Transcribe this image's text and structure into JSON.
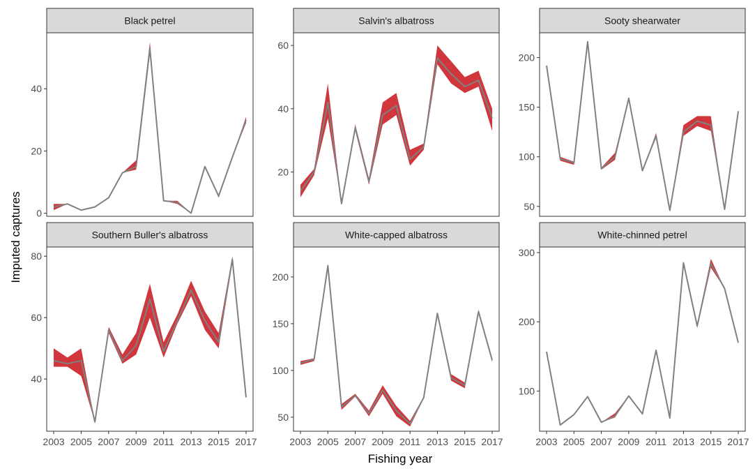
{
  "chart_data": {
    "type": "area",
    "xlabel": "Fishing year",
    "ylabel": "Imputed captures",
    "x_ticks": [
      2003,
      2005,
      2007,
      2009,
      2011,
      2013,
      2015,
      2017
    ],
    "x_tick_labels": [
      "2003",
      "2005",
      "2007",
      "2009",
      "2011",
      "2013",
      "2015",
      "2017"
    ],
    "xlim": [
      2003,
      2017
    ],
    "colors": {
      "band": "#d0363b",
      "line": "#808080",
      "strip": "#d9d9d9",
      "text": "#4d4d4d"
    },
    "panels": [
      {
        "title": "Black petrel",
        "ylim": [
          -1,
          58
        ],
        "y_ticks": [
          0,
          20,
          40
        ],
        "y_tick_labels": [
          "0",
          "20",
          "40"
        ],
        "years": [
          2003,
          2004,
          2005,
          2006,
          2007,
          2008,
          2009,
          2010,
          2011,
          2012,
          2013,
          2014,
          2015,
          2016,
          2017
        ],
        "median": [
          2,
          3,
          1,
          2,
          5,
          13,
          15,
          53,
          4,
          3.5,
          0,
          15,
          5.5,
          18,
          30
        ],
        "lower": [
          1,
          3,
          1,
          2,
          5,
          13,
          14,
          51,
          4,
          3,
          0,
          15,
          5,
          18,
          29
        ],
        "upper": [
          3,
          3,
          1,
          2,
          5,
          13,
          17,
          55,
          4,
          4,
          0,
          15,
          6,
          18,
          31
        ]
      },
      {
        "title": "Salvin's albatross",
        "ylim": [
          6,
          64
        ],
        "y_ticks": [
          20,
          40,
          60
        ],
        "y_tick_labels": [
          "20",
          "40",
          "60"
        ],
        "years": [
          2003,
          2004,
          2005,
          2006,
          2007,
          2008,
          2009,
          2010,
          2011,
          2012,
          2013,
          2014,
          2015,
          2016,
          2017
        ],
        "median": [
          14,
          20,
          42,
          10,
          34,
          17,
          38,
          41,
          24,
          28,
          56,
          51,
          47,
          49,
          37
        ],
        "lower": [
          12,
          19,
          37,
          10,
          33,
          16,
          35,
          38,
          22,
          27,
          54,
          48,
          45,
          47,
          33
        ],
        "upper": [
          16,
          21,
          48,
          10,
          35,
          18,
          42,
          45,
          27,
          29,
          60,
          55,
          50,
          52,
          40
        ]
      },
      {
        "title": "Sooty shearwater",
        "ylim": [
          40,
          225
        ],
        "y_ticks": [
          50,
          100,
          150,
          200
        ],
        "y_tick_labels": [
          "50",
          "100",
          "150",
          "200"
        ],
        "years": [
          2003,
          2004,
          2005,
          2006,
          2007,
          2008,
          2009,
          2010,
          2011,
          2012,
          2013,
          2014,
          2015,
          2016,
          2017
        ],
        "median": [
          192,
          98,
          94,
          216,
          88,
          100,
          159,
          86,
          121,
          46,
          125,
          136,
          132,
          47,
          146
        ],
        "lower": [
          192,
          96,
          92,
          216,
          87,
          97,
          158,
          86,
          119,
          46,
          121,
          131,
          126,
          47,
          146
        ],
        "upper": [
          192,
          100,
          95,
          216,
          89,
          104,
          160,
          86,
          124,
          46,
          132,
          141,
          141,
          47,
          146
        ]
      },
      {
        "title": "Southern Buller's albatross",
        "ylim": [
          23,
          83
        ],
        "y_ticks": [
          40,
          60,
          80
        ],
        "y_tick_labels": [
          "40",
          "60",
          "80"
        ],
        "years": [
          2003,
          2004,
          2005,
          2006,
          2007,
          2008,
          2009,
          2010,
          2011,
          2012,
          2013,
          2014,
          2015,
          2016,
          2017
        ],
        "median": [
          46,
          45,
          46,
          26,
          56,
          46,
          51,
          66,
          49,
          59,
          69,
          59,
          52,
          79,
          34
        ],
        "lower": [
          44,
          44,
          41,
          26,
          55,
          45,
          48,
          60,
          47,
          58,
          67,
          56,
          50,
          78,
          34
        ],
        "upper": [
          50,
          47,
          50,
          26,
          57,
          48,
          55,
          71,
          52,
          61,
          72,
          62,
          55,
          80,
          34
        ]
      },
      {
        "title": "White-capped albatross",
        "ylim": [
          35,
          232
        ],
        "y_ticks": [
          50,
          100,
          150,
          200
        ],
        "y_tick_labels": [
          "50",
          "100",
          "150",
          "200"
        ],
        "years": [
          2003,
          2004,
          2005,
          2006,
          2007,
          2008,
          2009,
          2010,
          2011,
          2012,
          2013,
          2014,
          2015,
          2016,
          2017
        ],
        "median": [
          108,
          112,
          212,
          61,
          73,
          54,
          79,
          57,
          43,
          71,
          161,
          92,
          84,
          163,
          111
        ],
        "lower": [
          106,
          110,
          212,
          58,
          72,
          51,
          75,
          51,
          40,
          70,
          160,
          89,
          81,
          161,
          109
        ],
        "upper": [
          110,
          113,
          214,
          64,
          75,
          57,
          84,
          62,
          46,
          72,
          162,
          96,
          87,
          165,
          113
        ]
      },
      {
        "title": "White-chinned petrel",
        "ylim": [
          42,
          308
        ],
        "y_ticks": [
          100,
          200,
          300
        ],
        "y_tick_labels": [
          "100",
          "200",
          "300"
        ],
        "years": [
          2003,
          2004,
          2005,
          2006,
          2007,
          2008,
          2009,
          2010,
          2011,
          2012,
          2013,
          2014,
          2015,
          2016,
          2017
        ],
        "median": [
          157,
          51,
          66,
          92,
          55,
          64,
          93,
          67,
          159,
          61,
          285,
          194,
          284,
          248,
          170
        ],
        "lower": [
          157,
          51,
          66,
          92,
          55,
          62,
          93,
          67,
          159,
          61,
          283,
          191,
          278,
          248,
          168
        ],
        "upper": [
          157,
          51,
          66,
          92,
          55,
          68,
          93,
          67,
          159,
          61,
          287,
          197,
          291,
          248,
          173
        ]
      }
    ]
  }
}
